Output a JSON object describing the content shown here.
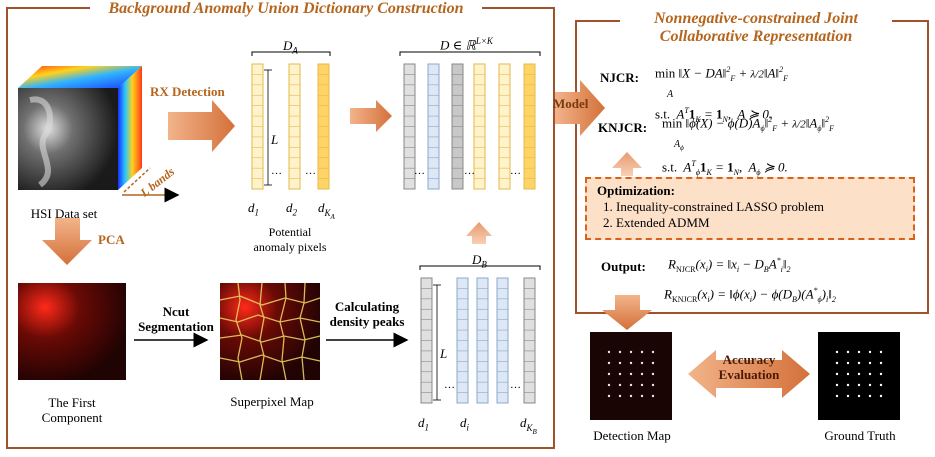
{
  "left_panel": {
    "title": "Background Anomaly Union Dictionary Construction",
    "hsi_label": "HSI Data set",
    "l_bands": "L bands",
    "rx_label": "RX Detection",
    "pca_label": "PCA",
    "first_component": "The First\nComponent",
    "ncut_label": "Ncut\nSegmentation",
    "superpixel_label": "Superpixel Map",
    "density_label": "Calculating\ndensity peaks",
    "potential_label": "Potential\nanomaly pixels",
    "DA": "D",
    "DA_sub": "A",
    "DB": "D",
    "DB_sub": "B",
    "D_full": "D ∈ ℝ",
    "D_full_sup": "L×K",
    "L": "L"
  },
  "right_panel": {
    "title_line1": "Nonnegative-constrained Joint",
    "title_line2": "Collaborative Representation",
    "njcr_label": "NJCR:",
    "knjcr_label": "KNJCR:",
    "optimization_title": "Optimization:",
    "opt_items": [
      "1.   Inequality-constrained LASSO problem",
      "2.   Extended ADMM"
    ],
    "output_label": "Output:"
  },
  "model_label": "Model",
  "accuracy_label": "Accuracy\nEvaluation",
  "detection_map_label": "Detection Map",
  "ground_truth_label": "Ground Truth"
}
